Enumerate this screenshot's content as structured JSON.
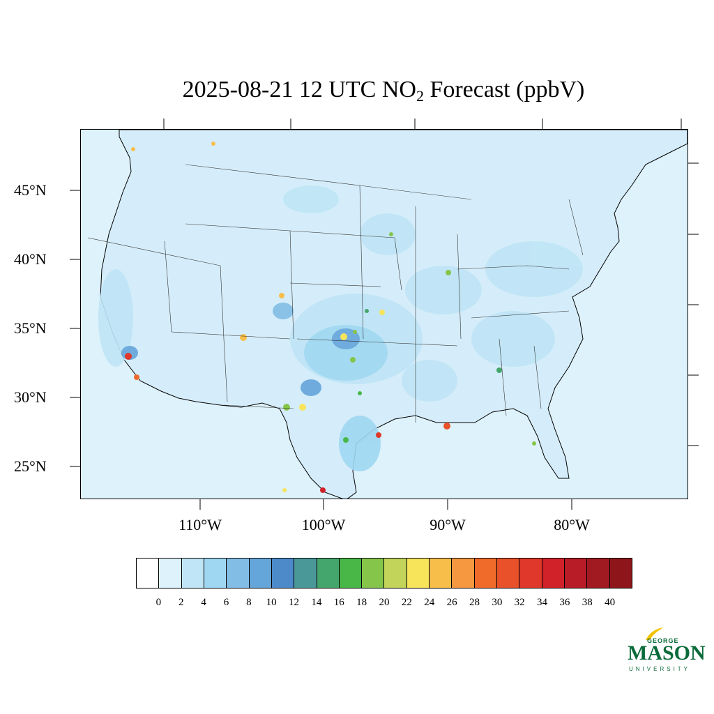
{
  "title": {
    "prefix": "2025-08-21 12 UTC NO",
    "subscript": "2",
    "suffix": " Forecast (ppbV)"
  },
  "map": {
    "lat_labels": [
      "45°N",
      "40°N",
      "35°N",
      "30°N",
      "25°N"
    ],
    "lon_labels": [
      "110°W",
      "100°W",
      "90°W",
      "80°W"
    ]
  },
  "colorbar": {
    "ticks": [
      "0",
      "2",
      "4",
      "6",
      "8",
      "10",
      "12",
      "14",
      "16",
      "18",
      "20",
      "22",
      "24",
      "26",
      "28",
      "30",
      "32",
      "34",
      "36",
      "38",
      "40"
    ],
    "colors": [
      "#ffffff",
      "#def2fb",
      "#bfe5f6",
      "#9fd7f2",
      "#82bde5",
      "#65a6da",
      "#4c8ac9",
      "#4a9898",
      "#45a66d",
      "#48b748",
      "#85c54a",
      "#c2d45a",
      "#f7e45a",
      "#f7bf4a",
      "#f5983f",
      "#f06a2a",
      "#e8512a",
      "#e0382a",
      "#d1222a",
      "#b71c27",
      "#a11a22",
      "#8e1519"
    ]
  },
  "logo": {
    "top": "GEORGE",
    "main": "MASON",
    "bottom": "UNIVERSITY"
  }
}
